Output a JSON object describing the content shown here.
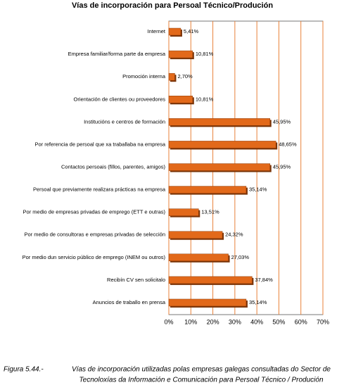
{
  "chart_data": {
    "type": "hbar",
    "title": "Vías de incorporación para Persoal Técnico/Produción",
    "categories": [
      "Internet",
      "Empresa familiar/forma parte da empresa",
      "Promoción interna",
      "Orientación de clientes ou proveedores",
      "Institucións e centros de formación",
      "Por referencia de persoal que xa traballaba na empresa",
      "Contactos persoais (fillos, parentes, amigos)",
      "Persoal que previamente realizara prácticas na empresa",
      "Por medio de empresas privadas de emprego (ETT e outras)",
      "Por medio  de consultoras e empresas privadas de selección",
      "Por medio dun servicio público de emprego (INEM ou outros)",
      "Recibín CV sen solicitalo",
      "Anuncios de traballo en prensa"
    ],
    "values": [
      5.41,
      10.81,
      2.7,
      10.81,
      45.95,
      48.65,
      45.95,
      35.14,
      13.51,
      24.32,
      27.03,
      37.84,
      35.14
    ],
    "value_labels": [
      "5,41%",
      "10,81%",
      "2,70%",
      "10,81%",
      "45,95%",
      "48,65%",
      "45,95%",
      "35,14%",
      "13,51%",
      "24,32%",
      "27,03%",
      "37,84%",
      "35,14%"
    ],
    "color": "#e2691a",
    "grid_color": "#e8823a",
    "grid": true,
    "xlim": [
      0,
      70
    ],
    "xticks": [
      {
        "value": 0,
        "label": "0%"
      },
      {
        "value": 10,
        "label": "10%"
      },
      {
        "value": 20,
        "label": "20%"
      },
      {
        "value": 30,
        "label": "30%"
      },
      {
        "value": 40,
        "label": "40%"
      },
      {
        "value": 50,
        "label": "50%"
      },
      {
        "value": 60,
        "label": "60%"
      },
      {
        "value": 70,
        "label": "70%"
      }
    ]
  },
  "figure_label": "Figura 5.44.-",
  "caption": [
    "Vías de incorporación utilizadas polas empresas galegas consultadas do Sector de",
    "Tecnoloxías da Información e Comunicación para Persoal Técnico / Produción"
  ]
}
